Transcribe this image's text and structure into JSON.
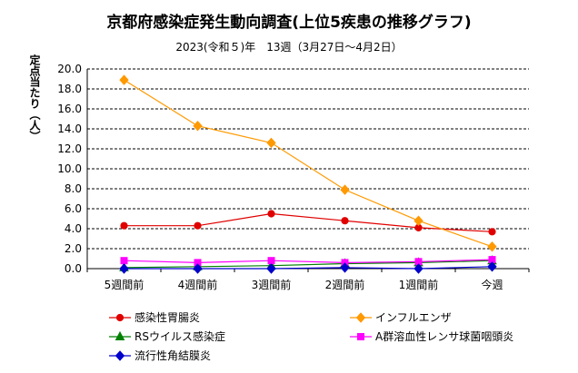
{
  "chart_data": {
    "type": "line",
    "title": "京都府感染症発生動向調査(上位5疾患の推移グラフ)",
    "subtitle": "2023(令和５)年　13週（3月27日～4月2日）",
    "ylabel": "定点当たり（人）",
    "xlabel": "",
    "categories": [
      "5週間前",
      "4週間前",
      "3週間前",
      "2週間前",
      "1週間前",
      "今週"
    ],
    "y_ticks": [
      "0.0",
      "2.0",
      "4.0",
      "6.0",
      "8.0",
      "10.0",
      "12.0",
      "14.0",
      "16.0",
      "18.0",
      "20.0"
    ],
    "ylim": [
      0,
      20
    ],
    "grid": "horizontal dashed",
    "legend_position": "bottom",
    "series": [
      {
        "name": "感染性胃腸炎",
        "color": "#e00000",
        "marker": "circle",
        "values": [
          4.3,
          4.3,
          5.5,
          4.8,
          4.1,
          3.7
        ]
      },
      {
        "name": "インフルエンザ",
        "color": "#ff9900",
        "marker": "diamond",
        "values": [
          18.9,
          14.3,
          12.6,
          7.9,
          4.8,
          2.2
        ]
      },
      {
        "name": "RSウイルス感染症",
        "color": "#008000",
        "marker": "triangle",
        "values": [
          0.1,
          0.2,
          0.3,
          0.5,
          0.6,
          0.8
        ]
      },
      {
        "name": "A群溶血性レンサ球菌咽頭炎",
        "color": "#ff00ff",
        "marker": "square",
        "values": [
          0.8,
          0.6,
          0.8,
          0.6,
          0.7,
          0.9
        ]
      },
      {
        "name": "流行性角結膜炎",
        "color": "#0000cc",
        "marker": "diamond",
        "values": [
          0.0,
          0.0,
          0.0,
          0.1,
          0.0,
          0.2
        ]
      }
    ]
  }
}
